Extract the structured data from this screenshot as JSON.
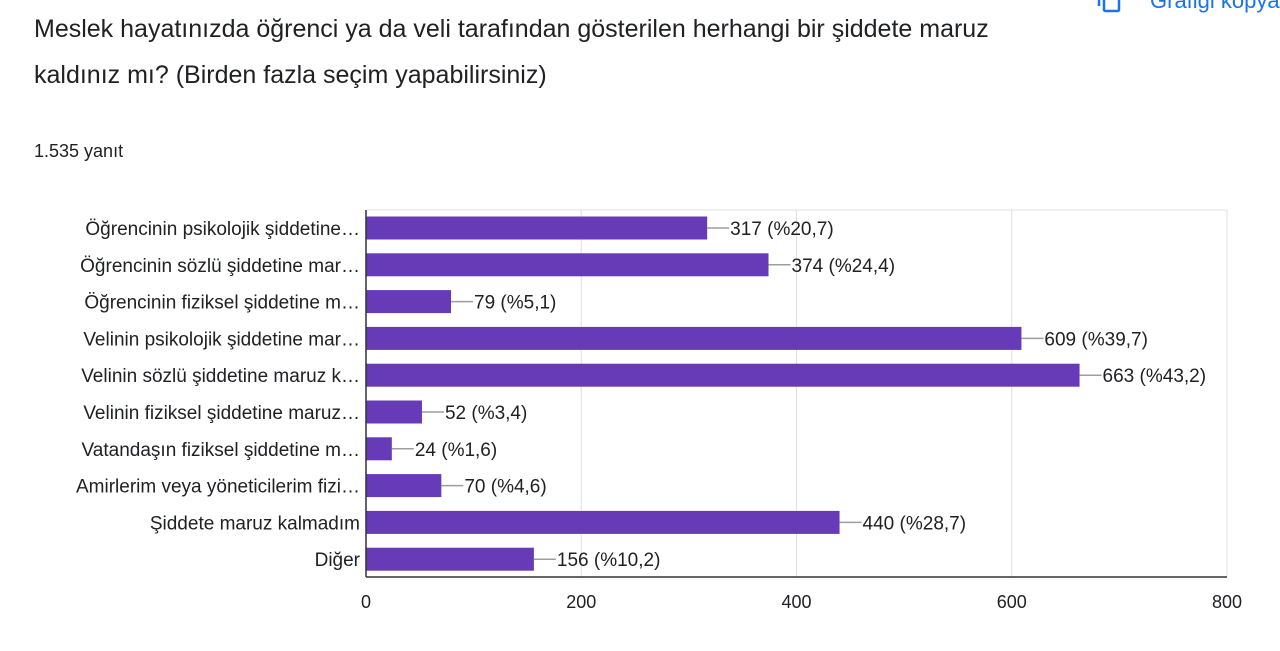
{
  "question": {
    "title": "Meslek hayatınızda öğrenci ya da veli tarafından gösterilen herhangi bir şiddete maruz kaldınız mı? (Birden fazla seçim yapabilirsiniz)",
    "response_count": "1.535 yanıt"
  },
  "toolbar": {
    "copy_chart_label": "Grafiği kopyala",
    "copy_icon": "copy-icon"
  },
  "colors": {
    "bar": "#673ab7",
    "gridline": "#e0e0e0",
    "axis": "#333333",
    "leader": "#9e9e9e",
    "text": "#202124",
    "accent": "#1a73e8"
  },
  "chart_data": {
    "type": "bar",
    "orientation": "horizontal",
    "categories": [
      "Öğrencinin psikolojik şiddetine…",
      "Öğrencinin sözlü şiddetine mar…",
      "Öğrencinin fiziksel şiddetine m…",
      "Velinin psikolojik şiddetine mar…",
      "Velinin sözlü şiddetine maruz k…",
      "Velinin fiziksel şiddetine maruz…",
      "Vatandaşın fiziksel şiddetine m…",
      "Amirlerim veya yöneticilerim fizi…",
      "Şiddete maruz kalmadım",
      "Diğer"
    ],
    "values": [
      317,
      374,
      79,
      609,
      663,
      52,
      24,
      70,
      440,
      156
    ],
    "data_labels": [
      "317 (%20,7)",
      "374 (%24,4)",
      "79 (%5,1)",
      "609 (%39,7)",
      "663 (%43,2)",
      "52 (%3,4)",
      "24 (%1,6)",
      "70 (%4,6)",
      "440 (%28,7)",
      "156 (%10,2)"
    ],
    "x_ticks": [
      0,
      200,
      400,
      600,
      800
    ],
    "xlim": [
      0,
      800
    ],
    "grid": true,
    "legend": "none",
    "xlabel": "",
    "ylabel": ""
  }
}
